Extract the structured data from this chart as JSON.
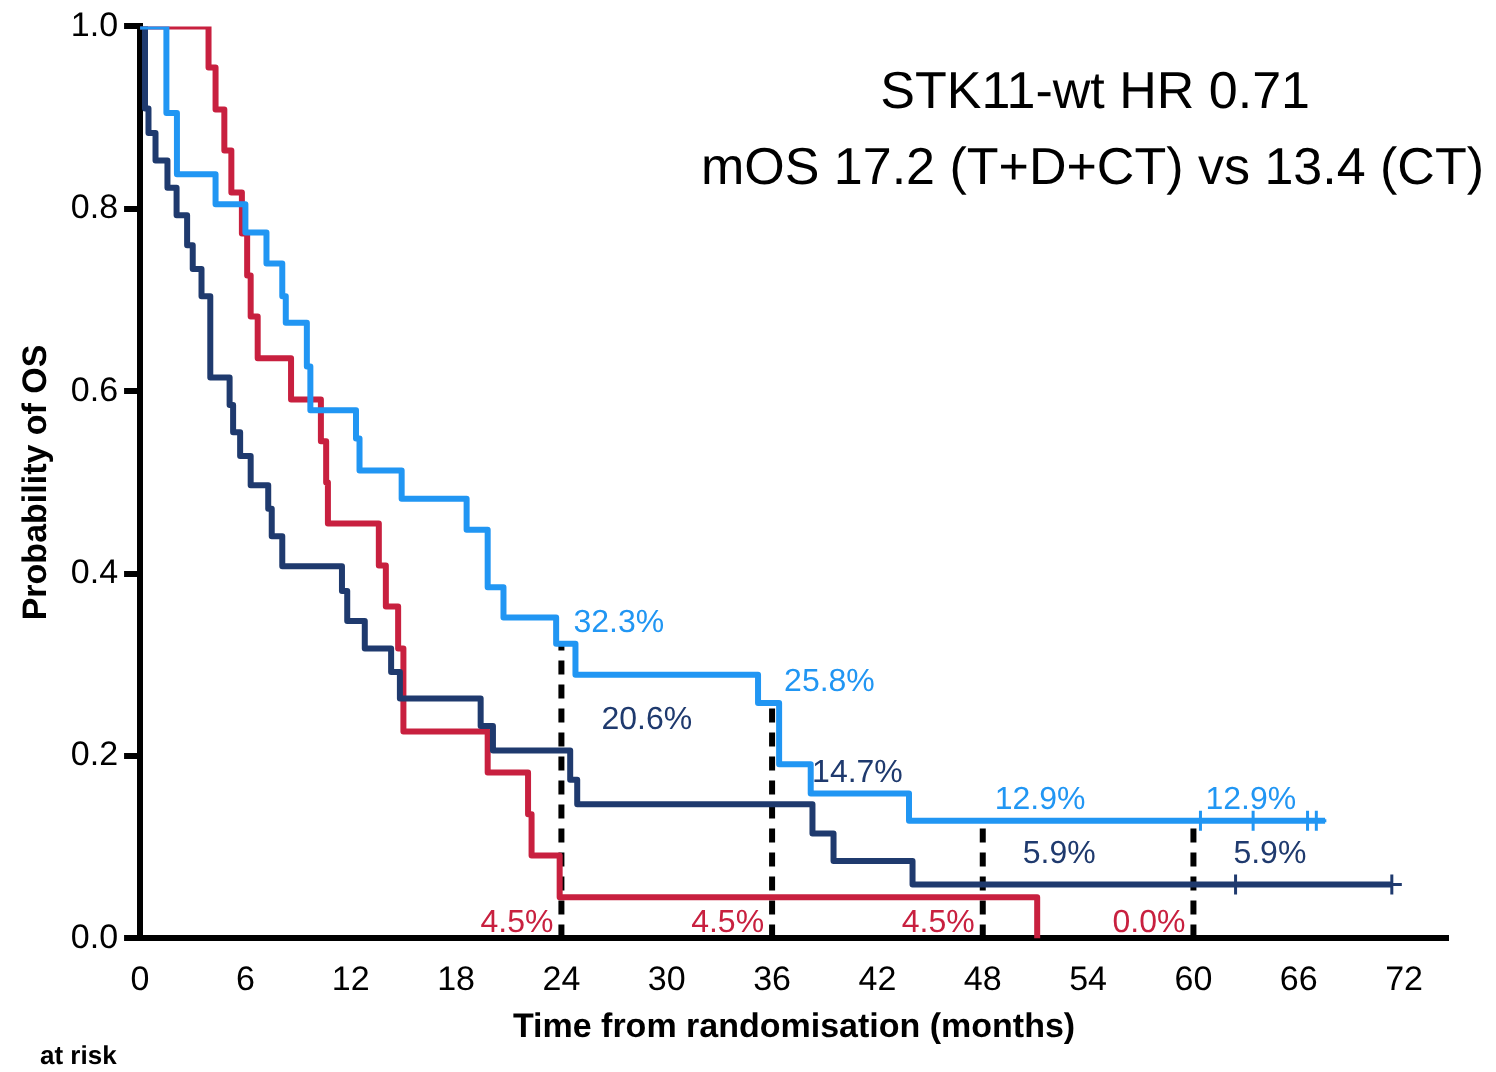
{
  "chart_data": {
    "type": "step",
    "title": "STK11-wt HR 0.71",
    "subtitle": "mOS 17.2 (T+D+CT) vs 13.4 (CT)",
    "xlabel": "Time from randomisation (months)",
    "ylabel": "Probability of OS",
    "xlim": [
      0,
      74.5
    ],
    "xticks": [
      0,
      6,
      12,
      18,
      24,
      30,
      36,
      42,
      48,
      54,
      60,
      66,
      72
    ],
    "ylim": [
      0,
      1
    ],
    "yticks": [
      {
        "value": 0,
        "label": "0.0"
      },
      {
        "value": 0.2,
        "label": "0.2"
      },
      {
        "value": 0.4,
        "label": "0.4"
      },
      {
        "value": 0.6,
        "label": "0.6"
      },
      {
        "value": 0.8,
        "label": "0.8"
      },
      {
        "value": 1,
        "label": "1.0"
      }
    ],
    "grid": false,
    "legend": false,
    "marker": "none",
    "series": [
      {
        "color": "#2196f3",
        "x": [
          0,
          1.5,
          2.1,
          4.3,
          6.0,
          7.2,
          8.1,
          8.3,
          9.5,
          9.7,
          12.3,
          12.5,
          14.9,
          18.6,
          19.8,
          20.7,
          23.7,
          24.8,
          35.2,
          36.4,
          38.2,
          43.8,
          67.5
        ],
        "values": [
          1,
          0.905,
          0.838,
          0.805,
          0.774,
          0.74,
          0.704,
          0.675,
          0.627,
          0.579,
          0.548,
          0.513,
          0.482,
          0.448,
          0.385,
          0.352,
          0.323,
          0.289,
          0.258,
          0.191,
          0.159,
          0.129,
          0.129
        ]
      },
      {
        "color": "#1f3a6e",
        "x": [
          0,
          0.28,
          0.48,
          0.88,
          1.56,
          2.08,
          2.68,
          3.0,
          3.5,
          4.0,
          5.1,
          5.3,
          5.7,
          6.3,
          7.3,
          7.5,
          8.1,
          11.5,
          11.8,
          12.8,
          14.3,
          14.8,
          19.4,
          20.1,
          24.5,
          24.9,
          38.3,
          39.5,
          44.0,
          71.3
        ],
        "values": [
          1,
          0.91,
          0.883,
          0.853,
          0.823,
          0.793,
          0.76,
          0.734,
          0.704,
          0.615,
          0.585,
          0.555,
          0.529,
          0.497,
          0.471,
          0.441,
          0.408,
          0.381,
          0.348,
          0.318,
          0.292,
          0.263,
          0.233,
          0.206,
          0.174,
          0.147,
          0.115,
          0.085,
          0.059,
          0.059
        ]
      },
      {
        "color": "#c8203f",
        "x": [
          0,
          3.9,
          4.3,
          4.8,
          5.2,
          5.8,
          6.1,
          6.3,
          6.7,
          8.6,
          10.3,
          10.6,
          10.7,
          13.6,
          14.0,
          14.7,
          15.0,
          19.8,
          22.1,
          22.3,
          23.9,
          51.1
        ],
        "values": [
          1,
          0.955,
          0.909,
          0.864,
          0.818,
          0.773,
          0.727,
          0.682,
          0.636,
          0.591,
          0.545,
          0.5,
          0.455,
          0.409,
          0.364,
          0.318,
          0.227,
          0.182,
          0.136,
          0.091,
          0.045,
          0
        ]
      },
      {
        "type": "scatter",
        "color": "#2196f3",
        "marker": "cross",
        "x": [
          60.4,
          63.4,
          66.5,
          67.0
        ],
        "values": [
          0.129,
          0.129,
          0.129,
          0.129
        ]
      },
      {
        "type": "scatter",
        "color": "#1f3a6e",
        "marker": "cross",
        "x": [
          62.4,
          71.3
        ],
        "values": [
          0.059,
          0.059
        ]
      },
      {
        "type": "line",
        "color": "#000000",
        "line_style": "dashed",
        "x": [
          24,
          24
        ],
        "values": [
          0,
          0.323
        ]
      },
      {
        "type": "line",
        "color": "#000000",
        "line_style": "dashed",
        "x": [
          36,
          36
        ],
        "values": [
          0,
          0.258
        ]
      },
      {
        "type": "line",
        "color": "#000000",
        "line_style": "dashed",
        "x": [
          48,
          48
        ],
        "values": [
          0,
          0.129
        ]
      },
      {
        "type": "line",
        "color": "#000000",
        "line_style": "dashed",
        "x": [
          60,
          60
        ],
        "values": [
          0,
          0.129
        ]
      }
    ],
    "annotations": [
      {
        "text": "32.3%",
        "x": 24,
        "y": 0.323
      },
      {
        "text": "20.6%",
        "x": 24,
        "y": 0.206
      },
      {
        "text": "4.5%",
        "x": 24,
        "y": 0.045
      },
      {
        "text": "25.8%",
        "x": 36,
        "y": 0.258
      },
      {
        "text": "14.7%",
        "x": 36,
        "y": 0.147
      },
      {
        "text": "4.5%",
        "x": 36,
        "y": 0.045
      },
      {
        "text": "12.9%",
        "x": 48,
        "y": 0.129
      },
      {
        "text": "5.9%",
        "x": 48,
        "y": 0.059
      },
      {
        "text": "4.5%",
        "x": 48,
        "y": 0.045
      },
      {
        "text": "12.9%",
        "x": 60,
        "y": 0.129
      },
      {
        "text": "5.9%",
        "x": 60,
        "y": 0.059
      },
      {
        "text": "0.0%",
        "x": 60,
        "y": 0
      },
      "at risk"
    ]
  }
}
